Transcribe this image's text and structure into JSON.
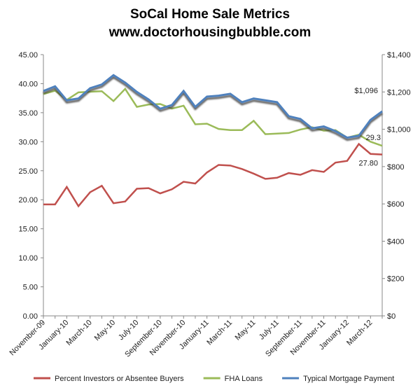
{
  "chart_data": {
    "type": "line",
    "title": "SoCal Home Sale Metrics",
    "subtitle": "www.doctorhousingbubble.com",
    "categories": [
      "November-09",
      null,
      "January-10",
      null,
      "March-10",
      null,
      "May-10",
      null,
      "July-10",
      null,
      "September-10",
      null,
      "November-10",
      null,
      "January-11",
      null,
      "March-11",
      null,
      "May-11",
      null,
      "July-11",
      null,
      "September-11",
      null,
      "November-11",
      null,
      "January-12",
      null,
      "March-12",
      null
    ],
    "series": [
      {
        "name": "Percent Investors or Absentee Buyers",
        "color": "#c0504d",
        "values": [
          19.2,
          19.2,
          22.2,
          18.9,
          21.3,
          22.4,
          19.4,
          19.7,
          21.9,
          22.0,
          21.1,
          21.8,
          23.1,
          22.8,
          24.7,
          26.0,
          25.9,
          25.3,
          24.5,
          23.6,
          23.8,
          24.6,
          24.3,
          25.1,
          24.8,
          26.4,
          26.7,
          29.6,
          27.9,
          27.8
        ],
        "value_labels": [
          null,
          null,
          null,
          null,
          null,
          null,
          null,
          null,
          null,
          null,
          null,
          null,
          null,
          null,
          null,
          null,
          null,
          null,
          null,
          null,
          null,
          null,
          null,
          null,
          null,
          null,
          null,
          null,
          null,
          "27.80"
        ]
      },
      {
        "name": "FHA Loans",
        "color": "#9bbb59",
        "values": [
          38.2,
          38.8,
          37.2,
          38.5,
          38.6,
          38.7,
          37.0,
          39.1,
          36.0,
          36.4,
          36.5,
          35.7,
          36.2,
          33.0,
          33.1,
          32.2,
          32.0,
          32.0,
          33.6,
          31.3,
          31.4,
          31.5,
          32.1,
          32.5,
          31.9,
          32.0,
          30.7,
          31.2,
          30.0,
          29.3
        ]
      },
      {
        "name": "Typical Mortgage Payment",
        "color": "#4f81bd",
        "axis": "y2",
        "values": [
          1205,
          1230,
          1155,
          1165,
          1220,
          1240,
          1290,
          1250,
          1200,
          1160,
          1110,
          1130,
          1205,
          1120,
          1175,
          1180,
          1190,
          1145,
          1165,
          1155,
          1145,
          1070,
          1055,
          1005,
          1015,
          990,
          955,
          965,
          1050,
          1096
        ],
        "value_labels": [
          null,
          null,
          null,
          null,
          null,
          null,
          null,
          null,
          null,
          null,
          null,
          null,
          null,
          null,
          null,
          null,
          null,
          null,
          null,
          null,
          null,
          null,
          null,
          null,
          null,
          null,
          null,
          null,
          null,
          "$1,096"
        ]
      }
    ],
    "ylim": [
      0,
      45
    ],
    "yticks": [
      {
        "value": 0,
        "label": "0.00"
      },
      {
        "value": 5,
        "label": "5.00"
      },
      {
        "value": 10,
        "label": "10.00"
      },
      {
        "value": 15,
        "label": "15.00"
      },
      {
        "value": 20,
        "label": "20.00"
      },
      {
        "value": 25,
        "label": "25.00"
      },
      {
        "value": 30,
        "label": "30.00"
      },
      {
        "value": 35,
        "label": "35.00"
      },
      {
        "value": 40,
        "label": "40.00"
      },
      {
        "value": 45,
        "label": "45.00"
      }
    ],
    "y2lim": [
      0,
      1400
    ],
    "y2ticks": [
      {
        "value": 0,
        "label": "$0"
      },
      {
        "value": 200,
        "label": "$200"
      },
      {
        "value": 400,
        "label": "$400"
      },
      {
        "value": 600,
        "label": "$600"
      },
      {
        "value": 800,
        "label": "$800"
      },
      {
        "value": 1000,
        "label": "$1,000"
      },
      {
        "value": 1200,
        "label": "$1,200"
      },
      {
        "value": 1400,
        "label": "$1,400"
      }
    ],
    "grid": false,
    "legend": "bottom"
  }
}
